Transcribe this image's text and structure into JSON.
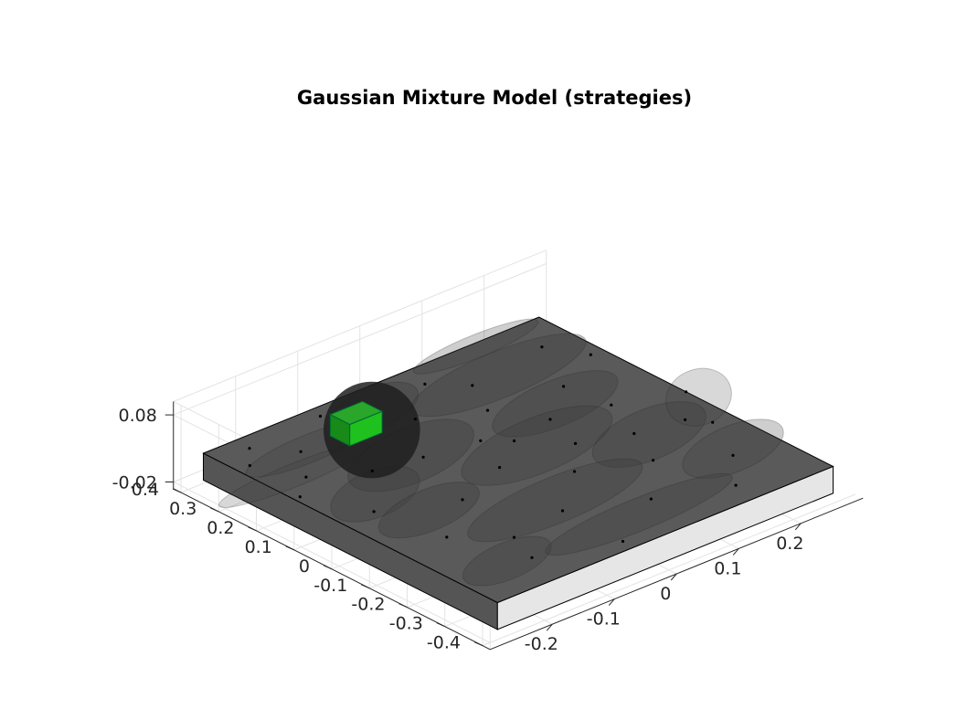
{
  "chart_data": {
    "type": "3d-surface",
    "title": "Gaussian Mixture Model (strategies)",
    "xlabel": "",
    "ylabel": "",
    "zlabel": "",
    "x_axis": {
      "ticks": [
        -0.4,
        -0.3,
        -0.2,
        -0.1,
        0,
        0.1,
        0.2,
        0.3,
        0.4
      ],
      "tick_labels": [
        "-0.4",
        "-0.3",
        "-0.2",
        "-0.1",
        "0",
        "0.1",
        "0.2",
        "0.3",
        "0.4"
      ],
      "lim": [
        -0.42,
        0.42
      ]
    },
    "y_axis": {
      "ticks": [
        -0.2,
        -0.1,
        0,
        0.1,
        0.2
      ],
      "tick_labels": [
        "-0.2",
        "-0.1",
        "0",
        "0.1",
        "0.2"
      ],
      "lim": [
        -0.3,
        0.3
      ]
    },
    "z_axis": {
      "ticks": [
        -0.02,
        0.08
      ],
      "tick_labels": [
        "-0.02",
        "0.08"
      ],
      "lim": [
        -0.03,
        0.1
      ]
    },
    "grid": true,
    "box": {
      "x": [
        -0.39,
        0.39
      ],
      "y": [
        -0.27,
        0.27
      ],
      "z": [
        -0.02,
        0.02
      ],
      "top_color": "#5a5a5a",
      "left_face_color": "#555555",
      "right_face_color": "#e6e6e6"
    },
    "component_color": "#3c3c3c",
    "highlight_color": "#1fc11f",
    "cube_center": [
      0.265,
      -0.1,
      0.02
    ],
    "means": [
      [
        0.3,
        -0.25,
        0.02
      ],
      [
        0.28,
        -0.18,
        0.02
      ],
      [
        0.2,
        -0.22,
        0.02
      ],
      [
        0.15,
        -0.26,
        0.02
      ],
      [
        0.33,
        0.05,
        0.02
      ],
      [
        0.3,
        0.22,
        0.02
      ],
      [
        0.27,
        0.09,
        0.02
      ],
      [
        0.22,
        0.25,
        0.02
      ],
      [
        0.18,
        0.06,
        0.02
      ],
      [
        0.14,
        -0.15,
        0.02
      ],
      [
        0.12,
        -0.08,
        0.02
      ],
      [
        0.1,
        0.0,
        0.02
      ],
      [
        0.08,
        0.1,
        0.02
      ],
      [
        0.05,
        0.18,
        0.02
      ],
      [
        0.02,
        -0.22,
        0.02
      ],
      [
        0.0,
        -0.03,
        0.02
      ],
      [
        -0.02,
        0.08,
        0.02
      ],
      [
        -0.05,
        -0.12,
        0.02
      ],
      [
        -0.08,
        0.22,
        0.02
      ],
      [
        -0.1,
        0.03,
        0.02
      ],
      [
        -0.14,
        -0.2,
        0.02
      ],
      [
        -0.16,
        0.12,
        0.02
      ],
      [
        -0.2,
        -0.05,
        0.02
      ],
      [
        -0.24,
        0.2,
        0.02
      ],
      [
        -0.27,
        0.05,
        0.02
      ],
      [
        -0.3,
        -0.16,
        0.02
      ],
      [
        -0.33,
        0.15,
        0.02
      ],
      [
        -0.36,
        -0.05,
        0.02
      ],
      [
        0.06,
        0.03,
        0.02
      ],
      [
        0.24,
        -0.02,
        0.02
      ],
      [
        -0.12,
        0.24,
        0.02
      ],
      [
        0.36,
        -0.1,
        0.02
      ],
      [
        0.35,
        -0.22,
        0.02
      ],
      [
        0.0,
        0.27,
        0.02
      ],
      [
        -0.06,
        0.15,
        0.02
      ],
      [
        0.16,
        0.17,
        0.02
      ],
      [
        -0.22,
        -0.14,
        0.02
      ],
      [
        0.31,
        -0.04,
        0.02
      ]
    ],
    "components": [
      {
        "mean": [
          0.3,
          -0.05
        ],
        "radii": [
          0.09,
          0.07
        ],
        "opacity": 0.35
      },
      {
        "mean": [
          0.26,
          -0.18
        ],
        "radii": [
          0.06,
          0.1
        ],
        "opacity": 0.25
      },
      {
        "mean": [
          0.25,
          0.12
        ],
        "radii": [
          0.1,
          0.14
        ],
        "opacity": 0.3
      },
      {
        "mean": [
          0.12,
          -0.1
        ],
        "radii": [
          0.12,
          0.1
        ],
        "opacity": 0.35
      },
      {
        "mean": [
          0.1,
          0.12
        ],
        "radii": [
          0.1,
          0.1
        ],
        "opacity": 0.3
      },
      {
        "mean": [
          0.05,
          -0.2
        ],
        "radii": [
          0.1,
          0.07
        ],
        "opacity": 0.3
      },
      {
        "mean": [
          0.0,
          0.03
        ],
        "radii": [
          0.12,
          0.12
        ],
        "opacity": 0.3
      },
      {
        "mean": [
          -0.06,
          -0.18
        ],
        "radii": [
          0.09,
          0.08
        ],
        "opacity": 0.35
      },
      {
        "mean": [
          -0.1,
          0.15
        ],
        "radii": [
          0.11,
          0.09
        ],
        "opacity": 0.3
      },
      {
        "mean": [
          -0.18,
          -0.05
        ],
        "radii": [
          0.1,
          0.14
        ],
        "opacity": 0.3
      },
      {
        "mean": [
          -0.24,
          0.2
        ],
        "radii": [
          0.1,
          0.08
        ],
        "opacity": 0.25
      },
      {
        "mean": [
          -0.32,
          0.0
        ],
        "radii": [
          0.07,
          0.15
        ],
        "opacity": 0.3
      },
      {
        "mean": [
          -0.3,
          -0.2
        ],
        "radii": [
          0.08,
          0.07
        ],
        "opacity": 0.3
      },
      {
        "mean": [
          0.36,
          0.15
        ],
        "radii": [
          0.05,
          0.1
        ],
        "opacity": 0.25
      },
      {
        "mean": [
          0.2,
          -0.24
        ],
        "radii": [
          0.05,
          0.12
        ],
        "opacity": 0.2
      },
      {
        "mean": [
          -0.05,
          0.26
        ],
        "radii": [
          0.12,
          0.05
        ],
        "opacity": 0.2
      }
    ],
    "dark_sphere": {
      "mean": [
        0.24,
        -0.09,
        0.03
      ],
      "radius": 0.048
    }
  }
}
